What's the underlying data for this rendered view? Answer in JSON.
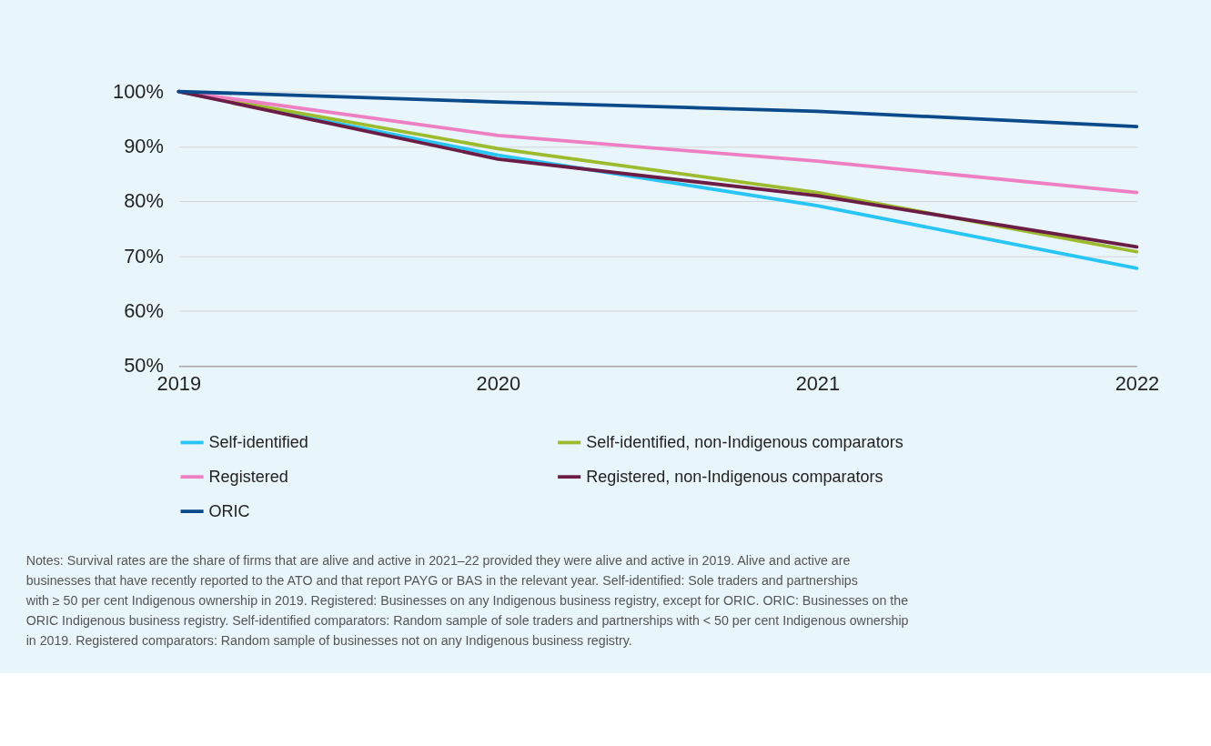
{
  "chart_data": {
    "type": "line",
    "x": [
      2019,
      2020,
      2021,
      2022
    ],
    "xlim": [
      2019,
      2022
    ],
    "xticks": [
      2019,
      2020,
      2021,
      2022
    ],
    "ylim": [
      50,
      100
    ],
    "yticks": [
      {
        "value": 50,
        "label": "50%"
      },
      {
        "value": 60,
        "label": "60%"
      },
      {
        "value": 70,
        "label": "70%"
      },
      {
        "value": 80,
        "label": "80%"
      },
      {
        "value": 90,
        "label": "90%"
      },
      {
        "value": 100,
        "label": "100%"
      }
    ],
    "grid": "y",
    "legend": "bottom",
    "marker": "none",
    "line_style": "solid",
    "series": [
      {
        "name": "Self-identified",
        "color": "#29c5f6",
        "values": [
          100,
          88.4,
          79.2,
          67.8
        ]
      },
      {
        "name": "Self-identified, non-Indigenous comparators",
        "color": "#9dbb2e",
        "values": [
          100,
          89.6,
          81.6,
          70.8
        ]
      },
      {
        "name": "Registered",
        "color": "#ee7fc3",
        "values": [
          100,
          92.0,
          87.3,
          81.6
        ]
      },
      {
        "name": "Registered, non-Indigenous comparators",
        "color": "#6b1d45",
        "values": [
          100,
          87.7,
          81.0,
          71.7
        ]
      },
      {
        "name": "ORIC",
        "color": "#0a4a8a",
        "values": [
          100,
          98.1,
          96.4,
          93.6
        ]
      }
    ],
    "annotations": [
      "Notes: Survival rates are the share of firms that are alive and active in 2021–22 provided they were alive and active in 2019. Alive and active are businesses that have recently reported to the ATO and that report PAYG or BAS in the relevant year. Self-identified: Sole traders and partnerships with ≥ 50 per cent Indigenous ownership in 2019. Registered: Businesses on any Indigenous business registry, except for ORIC. ORIC: Businesses on the ORIC Indigenous business registry. Self-identified comparators: Random sample of sole traders and partnerships with < 50 per cent Indigenous ownership in 2019. Registered comparators: Random sample of businesses not on any Indigenous business registry."
    ]
  }
}
